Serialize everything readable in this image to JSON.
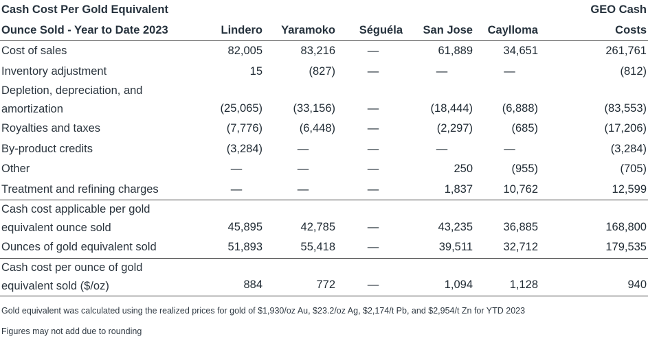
{
  "header": {
    "title_line1": "Cash Cost Per Gold Equivalent",
    "title_line2": "Ounce Sold - Year to Date 2023",
    "columns": [
      "Lindero",
      "Yaramoko",
      "Séguéla",
      "San Jose",
      "Caylloma"
    ],
    "geo_line1": "GEO Cash",
    "geo_line2": "Costs"
  },
  "rows": [
    {
      "label": "Cost of sales",
      "values": [
        "82,005",
        "83,216",
        "—",
        "61,889",
        "34,651",
        "261,761"
      ]
    },
    {
      "label": "Inventory adjustment",
      "values": [
        "15",
        "(827)",
        "—",
        "—",
        "—",
        "(812)"
      ]
    },
    {
      "label_line1": "Depletion, depreciation, and",
      "label_line2": "amortization",
      "values": [
        "(25,065)",
        "(33,156)",
        "—",
        "(18,444)",
        "(6,888)",
        "(83,553)"
      ]
    },
    {
      "label": "Royalties and taxes",
      "values": [
        "(7,776)",
        "(6,448)",
        "—",
        "(2,297)",
        "(685)",
        "(17,206)"
      ]
    },
    {
      "label": "By-product credits",
      "values": [
        "(3,284)",
        "—",
        "—",
        "—",
        "—",
        "(3,284)"
      ]
    },
    {
      "label": "Other",
      "values": [
        "—",
        "—",
        "—",
        "250",
        "(955)",
        "(705)"
      ]
    },
    {
      "label": "Treatment and refining charges",
      "values": [
        "—",
        "—",
        "—",
        "1,837",
        "10,762",
        "12,599"
      ]
    },
    {
      "label_line1": "Cash cost applicable per gold",
      "label_line2": "equivalent ounce sold",
      "values": [
        "45,895",
        "42,785",
        "—",
        "43,235",
        "36,885",
        "168,800"
      ]
    },
    {
      "label": "Ounces of gold equivalent sold",
      "values": [
        "51,893",
        "55,418",
        "—",
        "39,511",
        "32,712",
        "179,535"
      ]
    },
    {
      "label_line1": "Cash cost per ounce of gold",
      "label_line2": "equivalent sold ($/oz)",
      "values": [
        "884",
        "772",
        "—",
        "1,094",
        "1,128",
        "940"
      ]
    }
  ],
  "notes": [
    "Gold equivalent was calculated using the realized prices for gold of $1,930/oz Au, $23.2/oz Ag, $2,174/t Pb, and $2,954/t Zn for YTD 2023",
    "Figures may not add due to rounding"
  ]
}
